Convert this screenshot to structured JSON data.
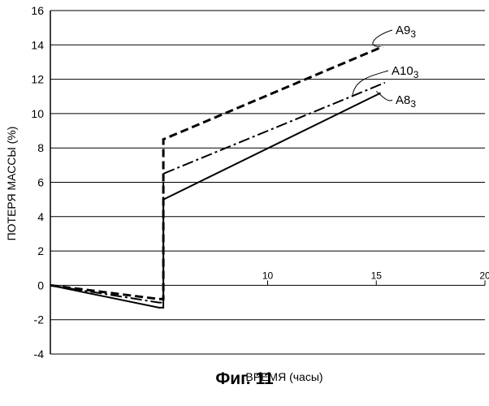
{
  "chart_data": {
    "type": "line",
    "xlabel": "ВРЕМЯ (часы)",
    "ylabel": "ПОТЕРЯ МАССЫ (%)",
    "xlim": [
      0,
      20
    ],
    "ylim": [
      -4,
      16
    ],
    "x_ticks": [
      10,
      15,
      20
    ],
    "y_ticks": [
      -4,
      -2,
      0,
      2,
      4,
      6,
      8,
      10,
      12,
      14,
      16
    ],
    "grid": "horizontal",
    "series": [
      {
        "name": "A9",
        "name_subscript": "3",
        "style": "dashed-bold",
        "x": [
          0,
          5,
          5.2,
          5.2,
          15.3
        ],
        "y": [
          0,
          -0.8,
          -0.8,
          8.5,
          13.9
        ]
      },
      {
        "name": "A10",
        "name_subscript": "3",
        "style": "dash-dot",
        "x": [
          0,
          5,
          5.2,
          5.2,
          15.4
        ],
        "y": [
          0,
          -1.0,
          -1.0,
          6.5,
          11.8
        ]
      },
      {
        "name": "A8",
        "name_subscript": "3",
        "style": "solid",
        "x": [
          0,
          5,
          5.2,
          5.2,
          15.2
        ],
        "y": [
          0,
          -1.3,
          -1.3,
          5.0,
          11.2
        ]
      }
    ]
  },
  "caption": "Фиг. 11"
}
